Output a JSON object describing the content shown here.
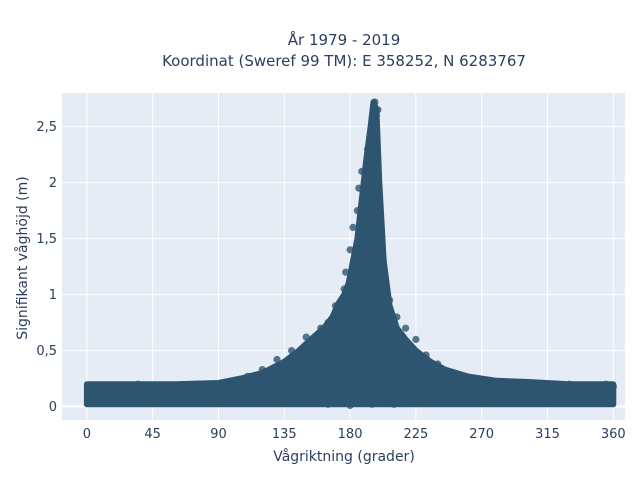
{
  "chart_data": {
    "type": "scatter",
    "title_line1": "År 1979 - 2019",
    "title_line2": "Koordinat (Sweref 99 TM): E 358252, N 6283767",
    "xlabel": "Vågriktning (grader)",
    "ylabel": "Signifikant våghöjd (m)",
    "xlim": [
      -17,
      368
    ],
    "ylim": [
      -0.12,
      2.8
    ],
    "x_ticks": [
      0,
      45,
      90,
      135,
      180,
      225,
      270,
      315,
      360
    ],
    "x_tick_labels": [
      "0",
      "45",
      "90",
      "135",
      "180",
      "225",
      "270",
      "315",
      "360"
    ],
    "y_ticks": [
      0,
      0.5,
      1,
      1.5,
      2,
      2.5
    ],
    "y_tick_labels": [
      "0",
      "0,5",
      "1",
      "1,5",
      "2",
      "2,5"
    ],
    "grid": true,
    "marker_color": "#2e5570",
    "plot_background": "#e5ecf6",
    "envelope": {
      "direction": [
        0,
        30,
        60,
        90,
        105,
        120,
        135,
        145,
        155,
        162,
        168,
        172,
        176,
        179,
        182,
        185,
        188,
        191,
        194,
        196,
        198,
        200,
        203,
        207,
        212,
        218,
        225,
        235,
        245,
        260,
        280,
        300,
        330,
        360
      ],
      "max_height": [
        0.2,
        0.2,
        0.2,
        0.21,
        0.25,
        0.3,
        0.4,
        0.5,
        0.62,
        0.7,
        0.8,
        0.92,
        1.0,
        1.1,
        1.3,
        1.5,
        1.85,
        2.2,
        2.5,
        2.72,
        2.65,
        2.0,
        1.3,
        0.9,
        0.7,
        0.6,
        0.5,
        0.4,
        0.33,
        0.27,
        0.23,
        0.22,
        0.2,
        0.2
      ],
      "min_height": 0.02
    },
    "points": [
      {
        "x": 197,
        "y": 2.72
      },
      {
        "x": 199,
        "y": 2.65
      },
      {
        "x": 198,
        "y": 2.6
      },
      {
        "x": 197,
        "y": 2.55
      },
      {
        "x": 194,
        "y": 2.4
      },
      {
        "x": 192,
        "y": 2.3
      },
      {
        "x": 188,
        "y": 2.1
      },
      {
        "x": 186,
        "y": 1.95
      },
      {
        "x": 185,
        "y": 1.75
      },
      {
        "x": 182,
        "y": 1.6
      },
      {
        "x": 180,
        "y": 1.4
      },
      {
        "x": 177,
        "y": 1.2
      },
      {
        "x": 176,
        "y": 1.05
      },
      {
        "x": 202,
        "y": 1.4
      },
      {
        "x": 204,
        "y": 1.15
      },
      {
        "x": 207,
        "y": 0.95
      },
      {
        "x": 212,
        "y": 0.8
      },
      {
        "x": 218,
        "y": 0.7
      },
      {
        "x": 225,
        "y": 0.6
      },
      {
        "x": 232,
        "y": 0.46
      },
      {
        "x": 170,
        "y": 0.9
      },
      {
        "x": 165,
        "y": 0.75
      },
      {
        "x": 160,
        "y": 0.7
      },
      {
        "x": 150,
        "y": 0.62
      },
      {
        "x": 140,
        "y": 0.5
      },
      {
        "x": 130,
        "y": 0.42
      },
      {
        "x": 120,
        "y": 0.33
      },
      {
        "x": 110,
        "y": 0.27
      },
      {
        "x": 100,
        "y": 0.22
      },
      {
        "x": 90,
        "y": 0.2
      },
      {
        "x": 75,
        "y": 0.19
      },
      {
        "x": 60,
        "y": 0.18
      },
      {
        "x": 45,
        "y": 0.16
      },
      {
        "x": 35,
        "y": 0.2
      },
      {
        "x": 25,
        "y": 0.18
      },
      {
        "x": 15,
        "y": 0.17
      },
      {
        "x": 8,
        "y": 0.19
      },
      {
        "x": 2,
        "y": 0.17
      },
      {
        "x": 1,
        "y": 0.08
      },
      {
        "x": 240,
        "y": 0.38
      },
      {
        "x": 250,
        "y": 0.3
      },
      {
        "x": 260,
        "y": 0.26
      },
      {
        "x": 270,
        "y": 0.24
      },
      {
        "x": 282,
        "y": 0.22
      },
      {
        "x": 290,
        "y": 0.2
      },
      {
        "x": 300,
        "y": 0.19
      },
      {
        "x": 308,
        "y": 0.17
      },
      {
        "x": 315,
        "y": 0.14
      },
      {
        "x": 322,
        "y": 0.19
      },
      {
        "x": 330,
        "y": 0.2
      },
      {
        "x": 338,
        "y": 0.15
      },
      {
        "x": 345,
        "y": 0.1
      },
      {
        "x": 350,
        "y": 0.17
      },
      {
        "x": 355,
        "y": 0.2
      },
      {
        "x": 358,
        "y": 0.16
      },
      {
        "x": 360,
        "y": 0.18
      },
      {
        "x": 352,
        "y": 0.08
      },
      {
        "x": 340,
        "y": 0.11
      },
      {
        "x": 312,
        "y": 0.11
      },
      {
        "x": 285,
        "y": 0.12
      },
      {
        "x": 265,
        "y": 0.07
      },
      {
        "x": 245,
        "y": 0.05
      },
      {
        "x": 228,
        "y": 0.04
      },
      {
        "x": 210,
        "y": 0.02
      },
      {
        "x": 195,
        "y": 0.02
      },
      {
        "x": 180,
        "y": 0.01
      },
      {
        "x": 165,
        "y": 0.02
      },
      {
        "x": 150,
        "y": 0.03
      },
      {
        "x": 135,
        "y": 0.05
      },
      {
        "x": 120,
        "y": 0.07
      },
      {
        "x": 105,
        "y": 0.08
      },
      {
        "x": 95,
        "y": 0.1
      },
      {
        "x": 80,
        "y": 0.1
      },
      {
        "x": 65,
        "y": 0.11
      },
      {
        "x": 50,
        "y": 0.13
      },
      {
        "x": 40,
        "y": 0.14
      },
      {
        "x": 30,
        "y": 0.15
      },
      {
        "x": 20,
        "y": 0.16
      },
      {
        "x": 10,
        "y": 0.15
      },
      {
        "x": 205,
        "y": 0.5
      },
      {
        "x": 189,
        "y": 0.9
      },
      {
        "x": 183,
        "y": 0.7
      },
      {
        "x": 175,
        "y": 0.5
      },
      {
        "x": 215,
        "y": 0.45
      },
      {
        "x": 200,
        "y": 0.3
      },
      {
        "x": 193,
        "y": 1.3
      },
      {
        "x": 187,
        "y": 1.2
      },
      {
        "x": 196,
        "y": 1.8
      }
    ]
  }
}
